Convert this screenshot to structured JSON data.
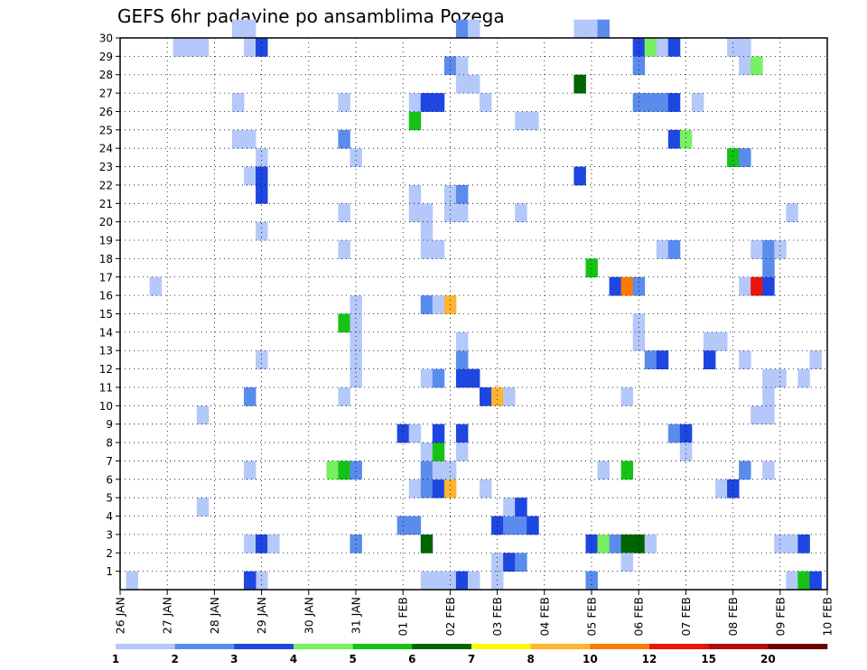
{
  "chart_data": {
    "type": "heatmap",
    "title": "GEFS 6hr padavine po ansamblima Pozega",
    "xlabel": "",
    "ylabel": "",
    "x_ticks": [
      "26 JAN",
      "27 JAN",
      "28 JAN",
      "29 JAN",
      "30 JAN",
      "31 JAN",
      "01 FEB",
      "02 FEB",
      "03 FEB",
      "04 FEB",
      "05 FEB",
      "06 FEB",
      "07 FEB",
      "08 FEB",
      "09 FEB",
      "10 FEB"
    ],
    "x_range": [
      "26 JAN 00",
      "10 FEB 00"
    ],
    "x_step": "6hr",
    "y_ticks": [
      1,
      2,
      3,
      4,
      5,
      6,
      7,
      8,
      9,
      10,
      11,
      12,
      13,
      14,
      15,
      16,
      17,
      18,
      19,
      20,
      21,
      22,
      23,
      24,
      25,
      26,
      27,
      28,
      29,
      30
    ],
    "y_range": [
      0,
      30
    ],
    "grid": true,
    "legend": {
      "placement": "bottom",
      "labels": [
        "1",
        "2",
        "3",
        "4",
        "5",
        "6",
        "7",
        "8",
        "10",
        "12",
        "15",
        "20"
      ],
      "colors": [
        "#b4c8fa",
        "#5a8ced",
        "#1e46e1",
        "#78f064",
        "#14c314",
        "#006400",
        "#fafa00",
        "#ffb432",
        "#ff7800",
        "#eb140a",
        "#b40a0a",
        "#6e0000"
      ]
    },
    "cells_format": "[date, hour, member, color_index]",
    "cells": [
      [
        "26 JAN",
        6,
        0,
        0
      ],
      [
        "26 JAN",
        18,
        16,
        0
      ],
      [
        "27 JAN",
        6,
        29,
        0
      ],
      [
        "27 JAN",
        12,
        29,
        0
      ],
      [
        "27 JAN",
        18,
        29,
        0
      ],
      [
        "27 JAN",
        18,
        9,
        0
      ],
      [
        "27 JAN",
        18,
        4,
        0
      ],
      [
        "28 JAN",
        12,
        26,
        0
      ],
      [
        "28 JAN",
        12,
        24,
        0
      ],
      [
        "28 JAN",
        18,
        30,
        0
      ],
      [
        "28 JAN",
        18,
        24,
        0
      ],
      [
        "28 JAN",
        12,
        30,
        0
      ],
      [
        "28 JAN",
        18,
        29,
        0
      ],
      [
        "28 JAN",
        18,
        22,
        0
      ],
      [
        "28 JAN",
        18,
        6,
        0
      ],
      [
        "28 JAN",
        18,
        2,
        0
      ],
      [
        "29 JAN",
        0,
        29,
        2
      ],
      [
        "29 JAN",
        0,
        23,
        0
      ],
      [
        "29 JAN",
        0,
        22,
        2
      ],
      [
        "29 JAN",
        0,
        21,
        2
      ],
      [
        "29 JAN",
        0,
        19,
        0
      ],
      [
        "29 JAN",
        0,
        12,
        0
      ],
      [
        "29 JAN",
        0,
        2,
        2
      ],
      [
        "29 JAN",
        0,
        0,
        0
      ],
      [
        "29 JAN",
        6,
        2,
        0
      ],
      [
        "28 JAN",
        18,
        10,
        1
      ],
      [
        "28 JAN",
        18,
        0,
        2
      ],
      [
        "30 JAN",
        12,
        6,
        3
      ],
      [
        "30 JAN",
        18,
        6,
        4
      ],
      [
        "31 JAN",
        0,
        6,
        1
      ],
      [
        "30 JAN",
        18,
        14,
        4
      ],
      [
        "31 JAN",
        0,
        14,
        0
      ],
      [
        "31 JAN",
        0,
        13,
        0
      ],
      [
        "31 JAN",
        0,
        15,
        0
      ],
      [
        "30 JAN",
        18,
        26,
        0
      ],
      [
        "30 JAN",
        18,
        24,
        1
      ],
      [
        "31 JAN",
        0,
        23,
        0
      ],
      [
        "30 JAN",
        18,
        20,
        0
      ],
      [
        "30 JAN",
        18,
        18,
        0
      ],
      [
        "30 JAN",
        18,
        10,
        0
      ],
      [
        "31 JAN",
        0,
        11,
        0
      ],
      [
        "31 JAN",
        0,
        12,
        0
      ],
      [
        "31 JAN",
        0,
        2,
        1
      ],
      [
        "01 FEB",
        0,
        8,
        2
      ],
      [
        "01 FEB",
        6,
        8,
        0
      ],
      [
        "01 FEB",
        0,
        3,
        1
      ],
      [
        "01 FEB",
        6,
        3,
        1
      ],
      [
        "01 FEB",
        6,
        5,
        0
      ],
      [
        "01 FEB",
        12,
        5,
        1
      ],
      [
        "01 FEB",
        18,
        5,
        2
      ],
      [
        "02 FEB",
        0,
        5,
        7
      ],
      [
        "01 FEB",
        12,
        6,
        1
      ],
      [
        "01 FEB",
        18,
        6,
        0
      ],
      [
        "02 FEB",
        0,
        6,
        0
      ],
      [
        "01 FEB",
        12,
        7,
        0
      ],
      [
        "01 FEB",
        18,
        7,
        4
      ],
      [
        "01 FEB",
        18,
        8,
        2
      ],
      [
        "01 FEB",
        12,
        2,
        5
      ],
      [
        "01 FEB",
        12,
        11,
        0
      ],
      [
        "01 FEB",
        18,
        11,
        1
      ],
      [
        "02 FEB",
        6,
        11,
        2
      ],
      [
        "02 FEB",
        12,
        11,
        2
      ],
      [
        "02 FEB",
        6,
        12,
        1
      ],
      [
        "02 FEB",
        6,
        13,
        0
      ],
      [
        "01 FEB",
        12,
        15,
        1
      ],
      [
        "01 FEB",
        18,
        15,
        0
      ],
      [
        "02 FEB",
        0,
        15,
        7
      ],
      [
        "01 FEB",
        12,
        18,
        0
      ],
      [
        "01 FEB",
        18,
        18,
        0
      ],
      [
        "01 FEB",
        12,
        19,
        0
      ],
      [
        "01 FEB",
        6,
        20,
        0
      ],
      [
        "01 FEB",
        6,
        21,
        0
      ],
      [
        "01 FEB",
        12,
        20,
        0
      ],
      [
        "02 FEB",
        0,
        20,
        0
      ],
      [
        "02 FEB",
        6,
        20,
        0
      ],
      [
        "02 FEB",
        0,
        21,
        0
      ],
      [
        "02 FEB",
        6,
        21,
        1
      ],
      [
        "01 FEB",
        6,
        25,
        4
      ],
      [
        "01 FEB",
        6,
        26,
        0
      ],
      [
        "01 FEB",
        12,
        26,
        2
      ],
      [
        "01 FEB",
        18,
        26,
        2
      ],
      [
        "02 FEB",
        0,
        28,
        1
      ],
      [
        "02 FEB",
        6,
        28,
        0
      ],
      [
        "02 FEB",
        6,
        27,
        0
      ],
      [
        "02 FEB",
        12,
        27,
        0
      ],
      [
        "02 FEB",
        6,
        30,
        1
      ],
      [
        "02 FEB",
        12,
        30,
        0
      ],
      [
        "01 FEB",
        12,
        0,
        0
      ],
      [
        "01 FEB",
        18,
        0,
        0
      ],
      [
        "02 FEB",
        0,
        0,
        0
      ],
      [
        "02 FEB",
        6,
        0,
        2
      ],
      [
        "02 FEB",
        12,
        0,
        0
      ],
      [
        "02 FEB",
        6,
        8,
        2
      ],
      [
        "02 FEB",
        6,
        7,
        0
      ],
      [
        "02 FEB",
        18,
        10,
        2
      ],
      [
        "03 FEB",
        0,
        10,
        7
      ],
      [
        "03 FEB",
        6,
        10,
        0
      ],
      [
        "02 FEB",
        18,
        5,
        0
      ],
      [
        "03 FEB",
        0,
        1,
        0
      ],
      [
        "03 FEB",
        0,
        0,
        0
      ],
      [
        "03 FEB",
        6,
        1,
        2
      ],
      [
        "03 FEB",
        12,
        1,
        1
      ],
      [
        "03 FEB",
        0,
        3,
        2
      ],
      [
        "03 FEB",
        6,
        3,
        1
      ],
      [
        "03 FEB",
        12,
        3,
        1
      ],
      [
        "03 FEB",
        18,
        3,
        2
      ],
      [
        "03 FEB",
        6,
        4,
        0
      ],
      [
        "03 FEB",
        12,
        4,
        2
      ],
      [
        "02 FEB",
        18,
        26,
        0
      ],
      [
        "03 FEB",
        12,
        25,
        0
      ],
      [
        "03 FEB",
        18,
        25,
        0
      ],
      [
        "03 FEB",
        12,
        20,
        0
      ],
      [
        "04 FEB",
        18,
        30,
        0
      ],
      [
        "05 FEB",
        0,
        30,
        0
      ],
      [
        "05 FEB",
        6,
        30,
        1
      ],
      [
        "04 FEB",
        18,
        27,
        5
      ],
      [
        "04 FEB",
        18,
        22,
        2
      ],
      [
        "05 FEB",
        0,
        17,
        4
      ],
      [
        "05 FEB",
        0,
        2,
        2
      ],
      [
        "05 FEB",
        6,
        2,
        3
      ],
      [
        "05 FEB",
        12,
        2,
        1
      ],
      [
        "05 FEB",
        18,
        2,
        5
      ],
      [
        "06 FEB",
        0,
        2,
        5
      ],
      [
        "06 FEB",
        6,
        2,
        0
      ],
      [
        "05 FEB",
        0,
        0,
        1
      ],
      [
        "05 FEB",
        6,
        6,
        0
      ],
      [
        "05 FEB",
        18,
        6,
        4
      ],
      [
        "05 FEB",
        18,
        1,
        0
      ],
      [
        "05 FEB",
        18,
        10,
        0
      ],
      [
        "05 FEB",
        12,
        16,
        2
      ],
      [
        "05 FEB",
        18,
        16,
        8
      ],
      [
        "06 FEB",
        0,
        16,
        1
      ],
      [
        "06 FEB",
        0,
        13,
        0
      ],
      [
        "06 FEB",
        0,
        14,
        0
      ],
      [
        "06 FEB",
        6,
        12,
        1
      ],
      [
        "06 FEB",
        12,
        12,
        2
      ],
      [
        "06 FEB",
        0,
        29,
        2
      ],
      [
        "06 FEB",
        6,
        29,
        3
      ],
      [
        "06 FEB",
        12,
        29,
        0
      ],
      [
        "06 FEB",
        18,
        29,
        2
      ],
      [
        "06 FEB",
        0,
        28,
        1
      ],
      [
        "06 FEB",
        0,
        26,
        1
      ],
      [
        "06 FEB",
        6,
        26,
        1
      ],
      [
        "06 FEB",
        12,
        26,
        1
      ],
      [
        "06 FEB",
        18,
        26,
        2
      ],
      [
        "06 FEB",
        18,
        24,
        2
      ],
      [
        "07 FEB",
        0,
        24,
        3
      ],
      [
        "06 FEB",
        12,
        18,
        0
      ],
      [
        "06 FEB",
        18,
        18,
        1
      ],
      [
        "06 FEB",
        18,
        8,
        1
      ],
      [
        "07 FEB",
        0,
        8,
        2
      ],
      [
        "07 FEB",
        0,
        7,
        0
      ],
      [
        "07 FEB",
        6,
        26,
        0
      ],
      [
        "07 FEB",
        12,
        13,
        0
      ],
      [
        "07 FEB",
        18,
        13,
        0
      ],
      [
        "07 FEB",
        12,
        12,
        2
      ],
      [
        "08 FEB",
        0,
        29,
        0
      ],
      [
        "08 FEB",
        6,
        29,
        0
      ],
      [
        "08 FEB",
        6,
        28,
        0
      ],
      [
        "08 FEB",
        12,
        28,
        3
      ],
      [
        "08 FEB",
        0,
        23,
        4
      ],
      [
        "08 FEB",
        6,
        23,
        1
      ],
      [
        "08 FEB",
        6,
        16,
        0
      ],
      [
        "08 FEB",
        12,
        16,
        9
      ],
      [
        "08 FEB",
        18,
        16,
        2
      ],
      [
        "08 FEB",
        12,
        18,
        0
      ],
      [
        "08 FEB",
        18,
        18,
        1
      ],
      [
        "09 FEB",
        0,
        18,
        0
      ],
      [
        "08 FEB",
        18,
        17,
        1
      ],
      [
        "08 FEB",
        6,
        12,
        0
      ],
      [
        "08 FEB",
        6,
        6,
        1
      ],
      [
        "08 FEB",
        18,
        6,
        0
      ],
      [
        "07 FEB",
        18,
        5,
        0
      ],
      [
        "08 FEB",
        0,
        5,
        2
      ],
      [
        "08 FEB",
        12,
        9,
        0
      ],
      [
        "08 FEB",
        18,
        9,
        0
      ],
      [
        "08 FEB",
        18,
        10,
        0
      ],
      [
        "08 FEB",
        18,
        11,
        0
      ],
      [
        "09 FEB",
        0,
        11,
        0
      ],
      [
        "09 FEB",
        12,
        11,
        0
      ],
      [
        "09 FEB",
        18,
        12,
        0
      ],
      [
        "09 FEB",
        6,
        20,
        0
      ],
      [
        "09 FEB",
        0,
        2,
        0
      ],
      [
        "09 FEB",
        6,
        2,
        0
      ],
      [
        "09 FEB",
        12,
        2,
        2
      ],
      [
        "09 FEB",
        6,
        0,
        0
      ],
      [
        "09 FEB",
        12,
        0,
        4
      ],
      [
        "09 FEB",
        18,
        0,
        2
      ]
    ]
  }
}
